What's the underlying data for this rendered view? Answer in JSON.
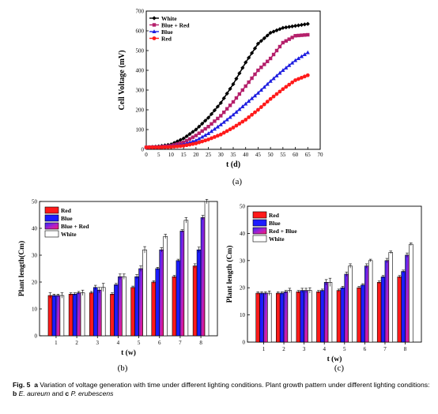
{
  "chart_data": [
    {
      "type": "line",
      "panel_label": "(a)",
      "xlabel": "t (d)",
      "ylabel": "Cell Voltage (mV)",
      "xlim": [
        0,
        70
      ],
      "ylim": [
        0,
        700
      ],
      "xticks": [
        "0",
        "5",
        "10",
        "15",
        "20",
        "25",
        "30",
        "35",
        "40",
        "45",
        "50",
        "55",
        "60",
        "65",
        "70"
      ],
      "yticks": [
        "0",
        "100",
        "200",
        "300",
        "400",
        "500",
        "600",
        "700"
      ],
      "legend_position": "top-left",
      "grid": false,
      "series": [
        {
          "name": "White",
          "color": "#000000",
          "marker": "diamond",
          "x": [
            0,
            5,
            10,
            15,
            20,
            25,
            30,
            35,
            40,
            45,
            50,
            55,
            60,
            65
          ],
          "y": [
            10,
            15,
            25,
            55,
            100,
            160,
            235,
            330,
            440,
            535,
            590,
            615,
            625,
            635
          ]
        },
        {
          "name": "Blue + Red",
          "color": "#b5206b",
          "marker": "square",
          "x": [
            0,
            5,
            10,
            15,
            20,
            25,
            30,
            35,
            40,
            45,
            50,
            55,
            60,
            65
          ],
          "y": [
            10,
            12,
            18,
            35,
            70,
            115,
            170,
            240,
            320,
            400,
            460,
            540,
            575,
            580
          ]
        },
        {
          "name": "Blue",
          "color": "#1e1ee0",
          "marker": "triangle",
          "x": [
            0,
            5,
            10,
            15,
            20,
            25,
            30,
            35,
            40,
            45,
            50,
            55,
            60,
            65
          ],
          "y": [
            10,
            11,
            15,
            25,
            45,
            80,
            125,
            175,
            230,
            285,
            345,
            400,
            450,
            490
          ]
        },
        {
          "name": "Red",
          "color": "#ff1a1a",
          "marker": "circle",
          "x": [
            0,
            5,
            10,
            15,
            20,
            25,
            30,
            35,
            40,
            45,
            50,
            55,
            60,
            65
          ],
          "y": [
            10,
            10,
            12,
            18,
            30,
            50,
            75,
            110,
            150,
            200,
            255,
            305,
            350,
            375
          ]
        }
      ]
    },
    {
      "type": "bar",
      "panel_label": "(b)",
      "xlabel": "t (w)",
      "ylabel": "Plant length(Cm)",
      "ylim": [
        0,
        50
      ],
      "yticks": [
        "0",
        "10",
        "20",
        "30",
        "40",
        "50"
      ],
      "categories": [
        "1",
        "2",
        "3",
        "4",
        "5",
        "6",
        "7",
        "8"
      ],
      "legend_position": "top-left",
      "series": [
        {
          "name": "Red",
          "fill": "red",
          "values": [
            15,
            15.5,
            16,
            15.5,
            18,
            20,
            22,
            26
          ],
          "errors": [
            1,
            0.5,
            0.5,
            0.5,
            0.5,
            0.5,
            0.5,
            0.8
          ]
        },
        {
          "name": "Blue",
          "fill": "blue",
          "values": [
            15,
            15.5,
            18,
            19,
            22,
            25,
            28,
            32
          ],
          "errors": [
            0.5,
            0.5,
            0.8,
            0.5,
            0.8,
            0.5,
            0.5,
            1
          ]
        },
        {
          "name": "Blue + Red",
          "fill": "bluered",
          "values": [
            15,
            16,
            17,
            22,
            25,
            32,
            39,
            44
          ],
          "errors": [
            0.5,
            0.5,
            1,
            1,
            1,
            0.8,
            0.5,
            0.8
          ]
        },
        {
          "name": "White",
          "fill": "white",
          "values": [
            15,
            16,
            18,
            22,
            32,
            37,
            43,
            50
          ],
          "errors": [
            1,
            1,
            1.5,
            1,
            1.2,
            0.8,
            1,
            0.8
          ]
        }
      ]
    },
    {
      "type": "bar",
      "panel_label": "(c)",
      "xlabel": "t (w)",
      "ylabel": "Plant length (Cm)",
      "ylim": [
        0,
        50
      ],
      "yticks": [
        "0",
        "10",
        "20",
        "30",
        "40",
        "50"
      ],
      "categories": [
        "1",
        "2",
        "3",
        "4",
        "5",
        "6",
        "7",
        "8"
      ],
      "legend_position": "top-left",
      "series": [
        {
          "name": "Red",
          "fill": "red",
          "values": [
            18,
            18,
            18.5,
            18.5,
            19,
            20,
            22,
            24
          ],
          "errors": [
            0.5,
            0.5,
            0.5,
            0.5,
            0.5,
            0.5,
            0.5,
            0.5
          ]
        },
        {
          "name": "Blue",
          "fill": "blue",
          "values": [
            18,
            18,
            19,
            19,
            20,
            21,
            24,
            26
          ],
          "errors": [
            0.5,
            0.5,
            0.8,
            0.5,
            0.5,
            0.5,
            0.5,
            0.5
          ]
        },
        {
          "name": "Red + Blue",
          "fill": "bluered",
          "values": [
            18,
            18.5,
            19,
            22,
            25,
            28,
            30,
            32
          ],
          "errors": [
            0.5,
            0.5,
            0.8,
            1,
            0.8,
            0.8,
            0.8,
            0.8
          ]
        },
        {
          "name": "White",
          "fill": "white",
          "values": [
            18,
            19,
            19,
            22,
            28,
            30,
            33,
            36
          ],
          "errors": [
            0.8,
            0.8,
            1,
            1.5,
            0.8,
            0.5,
            0.5,
            0.5
          ]
        }
      ]
    }
  ],
  "caption": {
    "figure_label": "Fig. 5",
    "text_a_label": "a",
    "text_a": "Variation of voltage generation with time under different lighting conditions. Plant growth pattern under different lighting conditions:",
    "text_b_label": "b",
    "text_b_species": "E. aureum",
    "text_and": "and",
    "text_c_label": "c",
    "text_c_species": "P. erubescens"
  }
}
